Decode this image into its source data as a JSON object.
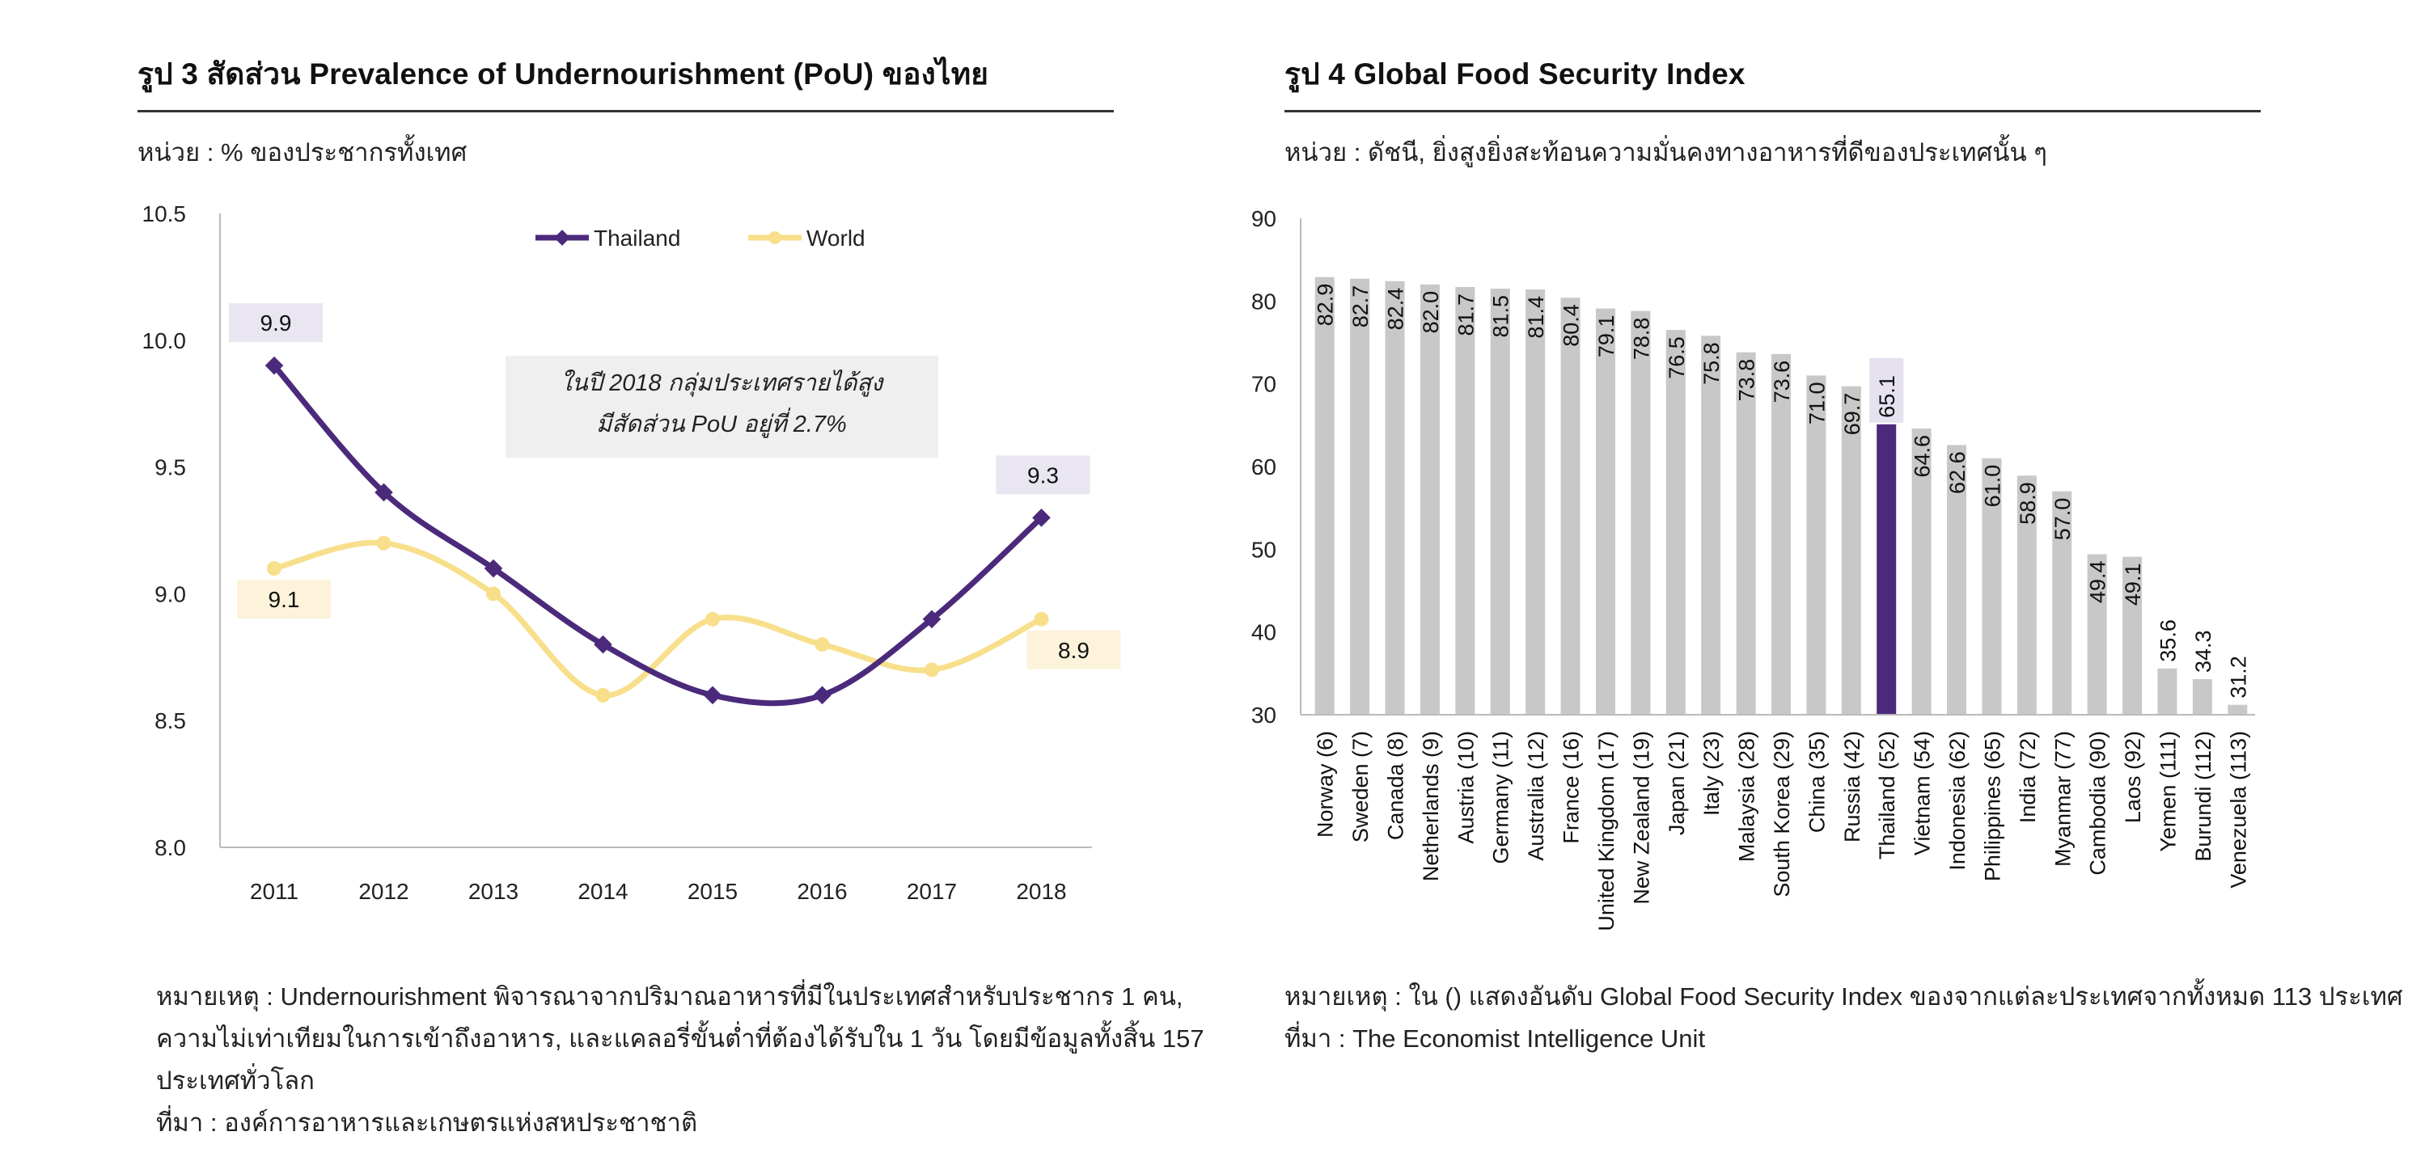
{
  "figure3": {
    "title": "รูป 3  สัดส่วน Prevalence of Undernourishment (PoU) ของไทย",
    "unit": "หน่วย : % ของประชากรทั้งเทศ",
    "annotation_line1": "ในปี 2018 กลุ่มประเทศรายได้สูง",
    "annotation_line2": "มีสัดส่วน PoU อยู่ที่ 2.7%",
    "notes": [
      "หมายเหตุ : Undernourishment พิจารณาจากปริมาณอาหารที่มีในประเทศสำหรับประชากร 1 คน,",
      "ความไม่เท่าเทียมในการเข้าถึงอาหาร, และแคลอรี่ขั้นต่ำที่ต้องได้รับใน 1 วัน โดยมีข้อมูลทั้งสิ้น 157",
      "ประเทศทั่วโลก",
      "ที่มา : องค์การอาหารและเกษตรแห่งสหประชาชาติ"
    ],
    "colors": {
      "thailand": "#4B2A7B",
      "world": "#F8DF8C",
      "label_thailand_bg": "#E9E6F2",
      "label_world_bg": "#FCF3DA",
      "annotation_bg": "#EFEFEF"
    }
  },
  "figure4": {
    "title": "รูป 4 Global Food Security Index",
    "unit": "หน่วย : ดัชนี, ยิ่งสูงยิ่งสะท้อนความมั่นคงทางอาหารที่ดีของประเทศนั้น ๆ",
    "notes": [
      "หมายเหตุ : ใน () แสดงอันดับ Global Food Security Index ของจากแต่ละประเทศจากทั้งหมด 113 ประเทศ",
      "ที่มา : The Economist Intelligence Unit"
    ],
    "colors": {
      "bar": "#C8C8C8",
      "highlight": "#4B2A7B",
      "highlight_label_bg": "#E5E1EE"
    }
  },
  "chart_data": [
    {
      "type": "line",
      "title": "สัดส่วน Prevalence of Undernourishment (PoU) ของไทย",
      "x": [
        "2011",
        "2012",
        "2013",
        "2014",
        "2015",
        "2016",
        "2017",
        "2018"
      ],
      "series": [
        {
          "name": "Thailand",
          "values": [
            9.9,
            9.4,
            9.1,
            8.8,
            8.6,
            8.6,
            8.9,
            9.3
          ]
        },
        {
          "name": "World",
          "values": [
            9.1,
            9.2,
            9.0,
            8.6,
            8.9,
            8.8,
            8.7,
            8.9
          ]
        }
      ],
      "data_labels": [
        {
          "series": "Thailand",
          "x": "2011",
          "text": "9.9"
        },
        {
          "series": "Thailand",
          "x": "2018",
          "text": "9.3"
        },
        {
          "series": "World",
          "x": "2011",
          "text": "9.1"
        },
        {
          "series": "World",
          "x": "2018",
          "text": "8.9"
        }
      ],
      "ylim": [
        8.0,
        10.5
      ],
      "yticks": [
        "8.0",
        "8.5",
        "9.0",
        "9.5",
        "10.0",
        "10.5"
      ],
      "xlabel": "",
      "ylabel": "",
      "legend": "top-center",
      "grid": false
    },
    {
      "type": "bar",
      "title": "Global Food Security Index",
      "categories": [
        "Norway (6)",
        "Sweden (7)",
        "Canada (8)",
        "Netherlands (9)",
        "Austria (10)",
        "Germany (11)",
        "Australia (12)",
        "France (16)",
        "United Kingdom (17)",
        "New Zealand (19)",
        "Japan (21)",
        "Italy (23)",
        "Malaysia (28)",
        "South Korea (29)",
        "China (35)",
        "Russia (42)",
        "Thailand (52)",
        "Vietnam (54)",
        "Indonesia (62)",
        "Philippines (65)",
        "India (72)",
        "Myanmar (77)",
        "Cambodia (90)",
        "Laos (92)",
        "Yemen (111)",
        "Burundi (112)",
        "Venezuela (113)"
      ],
      "values": [
        82.9,
        82.7,
        82.4,
        82.0,
        81.7,
        81.5,
        81.4,
        80.4,
        79.1,
        78.8,
        76.5,
        75.8,
        73.8,
        73.6,
        71.0,
        69.7,
        65.1,
        64.6,
        62.6,
        61.0,
        58.9,
        57.0,
        49.4,
        49.1,
        35.6,
        34.3,
        31.2
      ],
      "labels": [
        "82.9",
        "82.7",
        "82.4",
        "82.0",
        "81.7",
        "81.5",
        "81.4",
        "80.4",
        "79.1",
        "78.8",
        "76.5",
        "75.8",
        "73.8",
        "73.6",
        "71.0",
        "69.7",
        "65.1",
        "64.6",
        "62.6",
        "61.0",
        "58.9",
        "57.0",
        "49.4",
        "49.1",
        "35.6",
        "34.3",
        "31.2"
      ],
      "highlight": "Thailand (52)",
      "ylim": [
        30,
        90
      ],
      "yticks": [
        "30",
        "40",
        "50",
        "60",
        "70",
        "80",
        "90"
      ],
      "xlabel": "",
      "ylabel": "",
      "grid": false
    }
  ]
}
